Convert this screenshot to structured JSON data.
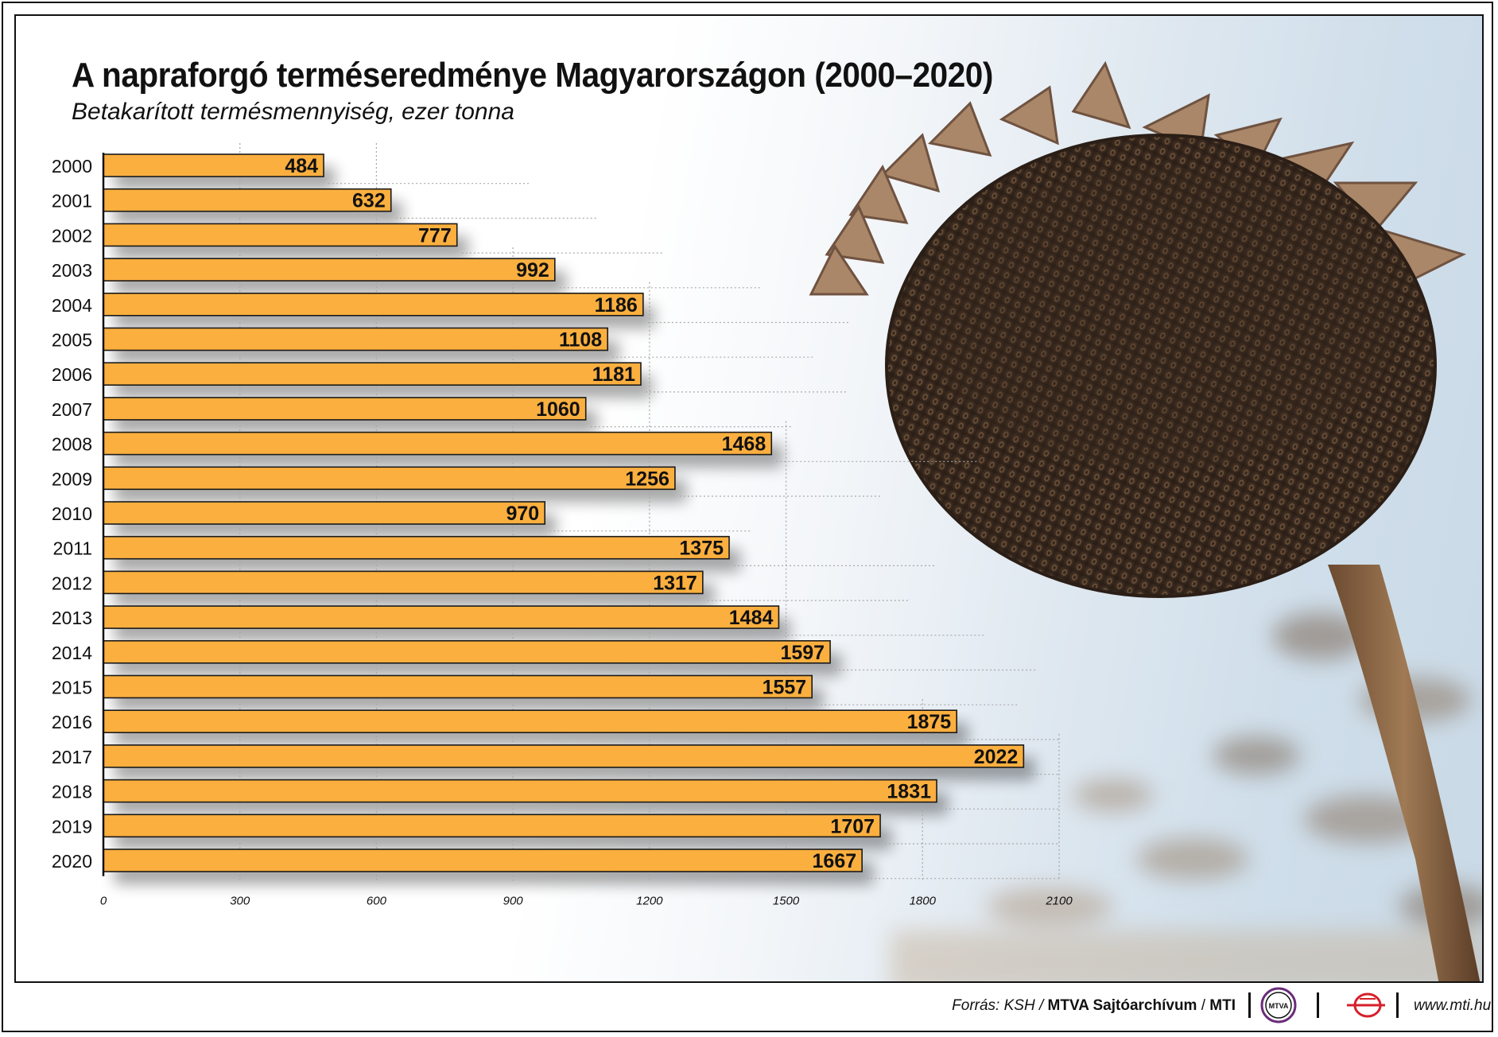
{
  "chart_data": {
    "type": "bar",
    "orientation": "horizontal",
    "title": "A napraforgó terméseredménye Magyarországon (2000–2020)",
    "subtitle": "Betakarított termésmennyiség, ezer tonna",
    "categories": [
      "2000",
      "2001",
      "2002",
      "2003",
      "2004",
      "2005",
      "2006",
      "2007",
      "2008",
      "2009",
      "2010",
      "2011",
      "2012",
      "2013",
      "2014",
      "2015",
      "2016",
      "2017",
      "2018",
      "2019",
      "2020"
    ],
    "values": [
      484,
      632,
      777,
      992,
      1186,
      1108,
      1181,
      1060,
      1468,
      1256,
      970,
      1375,
      1317,
      1484,
      1597,
      1557,
      1875,
      2022,
      1831,
      1707,
      1667
    ],
    "xlim": [
      0,
      2100
    ],
    "xticks": [
      "0",
      "300",
      "600",
      "900",
      "1200",
      "1500",
      "1800",
      "2100"
    ],
    "data_labels": true,
    "grid": "dotted",
    "bar_color": "#fbaf3f"
  },
  "footer": {
    "source_prefix": "Forrás: KSH / ",
    "source_archive": "MTVA Sajtóarchívum",
    "source_sep": " / ",
    "source_agency": "MTI",
    "mtva_logo_text": "MTVA",
    "website": "www.mti.hu"
  }
}
